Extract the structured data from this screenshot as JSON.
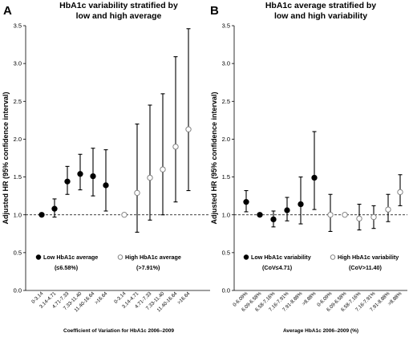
{
  "chart_data": [
    {
      "type": "scatter",
      "panel_letter": "A",
      "title": [
        "HbA1c variability stratified by",
        "low and high average"
      ],
      "ylabel": "Adjusted HR (95% confidence interval)",
      "xlabel": "Coefficient of Variation for HbA1c 2006–2009",
      "ylim": [
        0,
        3.5
      ],
      "yticks": [
        "0.0",
        "0.5",
        "1.0",
        "1.5",
        "2.0",
        "2.5",
        "3.0",
        "3.5"
      ],
      "reference_line": 1.0,
      "grid": false,
      "series": [
        {
          "name": "Low HbA1c average",
          "name_sub": "(≤6.58%)",
          "marker": "filled",
          "categories": [
            "0-3.14",
            "3.14-4.71",
            "4.71-7.33",
            "7.33-11.40",
            "11.40-16.64",
            ">16.64"
          ],
          "values": [
            1.0,
            1.08,
            1.44,
            1.54,
            1.51,
            1.39
          ],
          "ci_low": [
            1.0,
            0.97,
            1.27,
            1.33,
            1.25,
            1.05
          ],
          "ci_high": [
            1.0,
            1.21,
            1.64,
            1.8,
            1.88,
            1.86
          ]
        },
        {
          "name": "High HbA1c average",
          "name_sub": "(>7.91%)",
          "marker": "open",
          "categories": [
            "0-3.14",
            "3.14-4.71",
            "4.71-7.33",
            "7.33-11.40",
            "11.40-16.64",
            ">16.64"
          ],
          "values": [
            1.0,
            1.29,
            1.49,
            1.6,
            1.9,
            2.13
          ],
          "ci_low": [
            1.0,
            0.77,
            0.93,
            1.0,
            1.17,
            1.32
          ],
          "ci_high": [
            1.0,
            2.2,
            2.45,
            2.6,
            3.09,
            3.46
          ]
        }
      ]
    },
    {
      "type": "scatter",
      "panel_letter": "B",
      "title": [
        "HbA1c average stratified by",
        "low and high variability"
      ],
      "ylabel": "Adjusted HR (95% confidence interval)",
      "xlabel": "Average HbA1c 2006–2009 (%)",
      "ylim": [
        0,
        3.5
      ],
      "yticks": [
        "0.0",
        "0.5",
        "1.0",
        "1.5",
        "2.0",
        "2.5",
        "3.0",
        "3.5"
      ],
      "reference_line": 1.0,
      "grid": false,
      "series": [
        {
          "name": "Low HbA1c variability",
          "name_sub": "(CoV≤4.71)",
          "marker": "filled",
          "categories": [
            "0-6.09%",
            "6.09-6.58%",
            "6.58-7.16%",
            "7.16-7.91%",
            "7.91-8.88%",
            ">8.88%"
          ],
          "values": [
            1.17,
            1.0,
            0.94,
            1.06,
            1.14,
            1.49
          ],
          "ci_low": [
            1.04,
            1.0,
            0.84,
            0.92,
            0.88,
            1.07
          ],
          "ci_high": [
            1.32,
            1.0,
            1.05,
            1.23,
            1.5,
            2.1
          ]
        },
        {
          "name": "High HbA1c variability",
          "name_sub": "(CoV>11.40)",
          "marker": "open",
          "categories": [
            "0-6.09%",
            "6.09-6.58%",
            "6.58-7.16%",
            "7.16-7.91%",
            "7.91-8.88%",
            ">8.88%"
          ],
          "values": [
            1.0,
            1.0,
            0.95,
            0.97,
            1.07,
            1.3
          ],
          "ci_low": [
            0.78,
            1.0,
            0.8,
            0.82,
            0.91,
            1.12
          ],
          "ci_high": [
            1.27,
            1.0,
            1.14,
            1.12,
            1.27,
            1.53
          ]
        }
      ]
    }
  ]
}
